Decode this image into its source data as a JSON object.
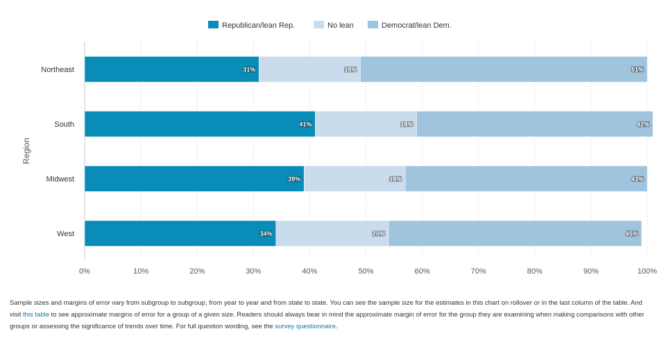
{
  "chart_data": {
    "type": "bar",
    "orientation": "horizontal",
    "stacked": true,
    "categories": [
      "Northeast",
      "South",
      "Midwest",
      "West"
    ],
    "series": [
      {
        "name": "Republican/lean Rep.",
        "values": [
          31,
          41,
          39,
          34
        ],
        "color": "#0a8cb8"
      },
      {
        "name": "No lean",
        "values": [
          18,
          18,
          18,
          20
        ],
        "color": "#c8dcee"
      },
      {
        "name": "Democrat/lean Dem.",
        "values": [
          51,
          42,
          43,
          45
        ],
        "color": "#a0c4de"
      }
    ],
    "ylabel": "Region",
    "xlim": [
      0,
      100
    ],
    "xticks": [
      "0%",
      "10%",
      "20%",
      "30%",
      "40%",
      "50%",
      "60%",
      "70%",
      "80%",
      "90%",
      "100%"
    ],
    "value_suffix": "%",
    "grid": "vertical dotted",
    "legend_position": "top-center"
  },
  "footnote": {
    "part1": "Sample sizes and margins of error vary from subgroup to subgroup, from year to year and from state to state. You can see the sample size for the estimates in this chart on rollover or in the last column of the table. And visit ",
    "link1": "this table",
    "part2": " to see approximate margins of error for a group of a given size. Readers should always bear in mind the approximate margin of error for the group they are examining when making comparisons with other groups or assessing the significance of trends over time. For full question wording, see the ",
    "link2": "survey questionnaire",
    "part3": "."
  }
}
